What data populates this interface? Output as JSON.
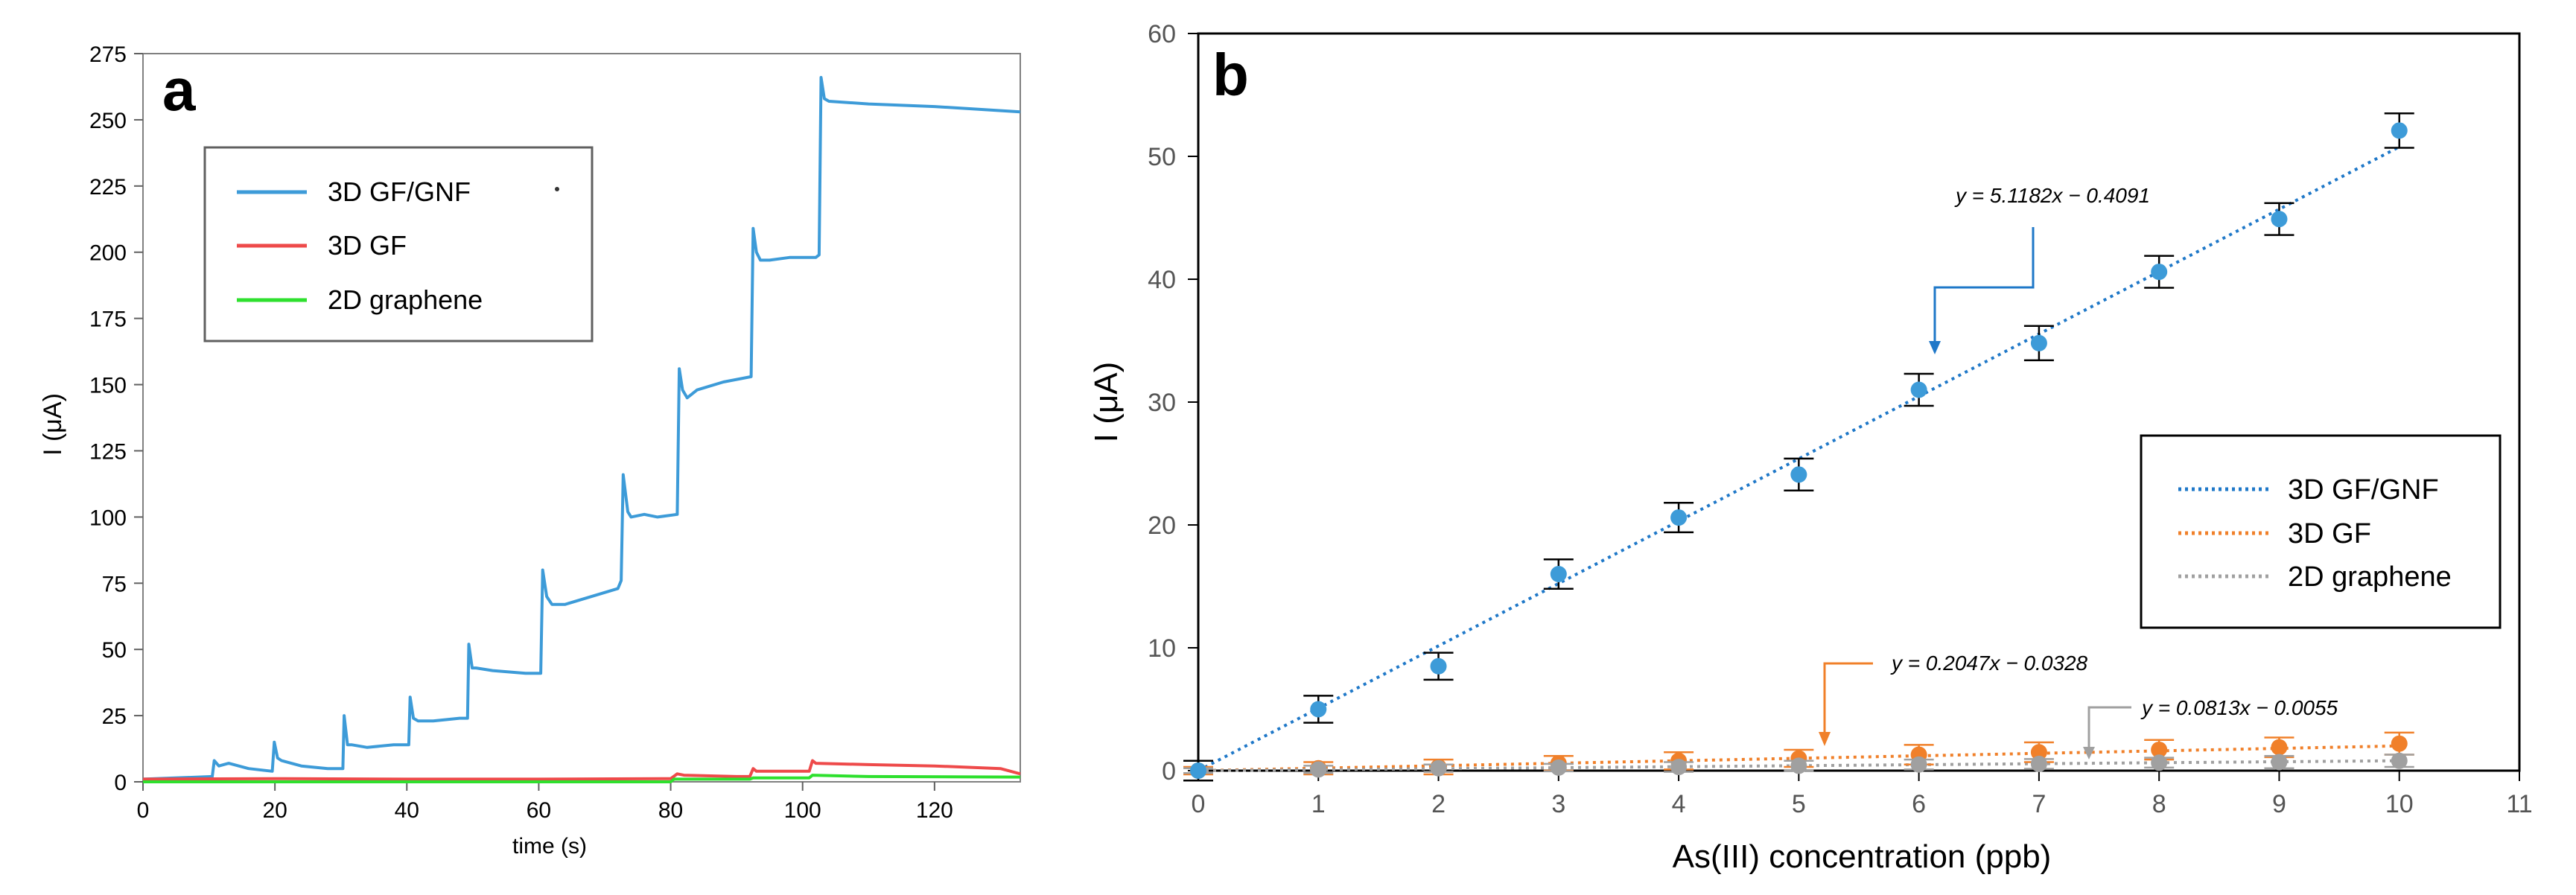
{
  "colors": {
    "blue": "#3d9bd8",
    "red": "#ee4a4a",
    "green": "#2ee02e",
    "orange": "#f0802a",
    "gray": "#a0a0a0",
    "axis": "#000000",
    "tick_text": "#555555"
  },
  "chart_data": [
    {
      "type": "line",
      "panel_label": "a",
      "xlabel": "time (s)",
      "ylabel": "I (μA)",
      "xlim": [
        0,
        133
      ],
      "ylim": [
        0,
        275
      ],
      "x_ticks": [
        0,
        20,
        40,
        60,
        80,
        100,
        120
      ],
      "y_ticks": [
        0,
        25,
        50,
        75,
        100,
        125,
        150,
        175,
        200,
        225,
        250,
        275
      ],
      "legend": [
        "3D GF/GNF",
        "3D GF",
        "2D graphene"
      ],
      "series": [
        {
          "name": "3D GF/GNF",
          "x": [
            0,
            10.5,
            10.8,
            11.5,
            13,
            16,
            19.6,
            19.9,
            20.4,
            21,
            24,
            28,
            30.3,
            30.5,
            31,
            31.6,
            34,
            38,
            40.3,
            40.5,
            41,
            41.7,
            44,
            48,
            49.2,
            49.4,
            49.9,
            50.5,
            53,
            58,
            60.3,
            60.6,
            61.2,
            62,
            64,
            68,
            72,
            72.5,
            72.8,
            73.5,
            74,
            76,
            78,
            81,
            81.3,
            81.8,
            82.5,
            84,
            88,
            92.2,
            92.5,
            93,
            93.6,
            95,
            98,
            102,
            102.5,
            102.8,
            103.3,
            104,
            110,
            120,
            133
          ],
          "y": [
            1,
            2,
            8,
            6,
            7,
            5,
            4,
            15,
            9,
            8,
            6,
            5,
            5,
            25,
            14,
            14,
            13,
            14,
            14,
            32,
            24,
            23,
            23,
            24,
            24,
            52,
            43,
            43,
            42,
            41,
            41,
            80,
            70,
            67,
            67,
            70,
            73,
            76,
            116,
            102,
            100,
            101,
            100,
            101,
            156,
            148,
            145,
            148,
            151,
            153,
            209,
            200,
            197,
            197,
            198,
            198,
            199,
            266,
            258,
            257,
            256,
            255,
            253
          ]
        },
        {
          "name": "3D GF",
          "x": [
            0,
            20,
            40,
            60,
            80,
            81,
            82,
            90,
            92,
            92.5,
            93,
            100,
            101,
            101.5,
            102,
            110,
            120,
            130,
            133
          ],
          "y": [
            1,
            1.2,
            1,
            1,
            1.2,
            3,
            2.5,
            2,
            2,
            5,
            4,
            4,
            4,
            8,
            7,
            6.5,
            6,
            5,
            3
          ]
        },
        {
          "name": "2D graphene",
          "x": [
            0,
            40,
            80,
            80.5,
            90,
            92,
            92.5,
            100,
            101,
            101.5,
            110,
            133
          ],
          "y": [
            0,
            0,
            0,
            1,
            1,
            1,
            1.5,
            1.5,
            1.5,
            2.5,
            2,
            1.8
          ]
        }
      ]
    },
    {
      "type": "scatter",
      "panel_label": "b",
      "xlabel": "As(III) concentration (ppb)",
      "ylabel": "I (μA)",
      "xlim": [
        0,
        11
      ],
      "ylim": [
        0,
        60
      ],
      "x_ticks": [
        0,
        1,
        2,
        3,
        4,
        5,
        6,
        7,
        8,
        9,
        10,
        11
      ],
      "y_ticks": [
        0,
        10,
        20,
        30,
        40,
        50,
        60
      ],
      "legend": [
        "3D GF/GNF",
        "3D GF",
        "2D graphene"
      ],
      "series": [
        {
          "name": "3D GF/GNF",
          "x": [
            0,
            1,
            2,
            3,
            4,
            5,
            6,
            7,
            8,
            9,
            10
          ],
          "y": [
            0,
            5.0,
            8.5,
            16.0,
            20.6,
            24.1,
            31.0,
            34.8,
            40.6,
            44.9,
            52.1
          ],
          "err": [
            0.8,
            1.1,
            1.1,
            1.2,
            1.2,
            1.3,
            1.3,
            1.4,
            1.3,
            1.3,
            1.4
          ],
          "fit": {
            "slope": 5.1182,
            "intercept": -0.4091,
            "label": "y = 5.1182x − 0.4091"
          }
        },
        {
          "name": "3D GF",
          "x": [
            0,
            1,
            2,
            3,
            4,
            5,
            6,
            7,
            8,
            9,
            10
          ],
          "y": [
            0,
            0.2,
            0.3,
            0.6,
            0.8,
            1.0,
            1.3,
            1.5,
            1.7,
            1.9,
            2.2
          ],
          "err": [
            0.3,
            0.5,
            0.6,
            0.6,
            0.7,
            0.7,
            0.8,
            0.8,
            0.8,
            0.8,
            0.9
          ],
          "fit": {
            "slope": 0.2047,
            "intercept": -0.0328,
            "label": "y = 0.2047x − 0.0328"
          }
        },
        {
          "name": "2D graphene",
          "x": [
            0,
            1,
            2,
            3,
            4,
            5,
            6,
            7,
            8,
            9,
            10
          ],
          "y": [
            0,
            0.1,
            0.2,
            0.25,
            0.3,
            0.4,
            0.5,
            0.55,
            0.65,
            0.7,
            0.8
          ],
          "err": [
            0.2,
            0.3,
            0.3,
            0.3,
            0.4,
            0.4,
            0.4,
            0.4,
            0.4,
            0.5,
            0.5
          ],
          "fit": {
            "slope": 0.0813,
            "intercept": -0.0055,
            "label": "y = 0.0813x − 0.0055"
          }
        }
      ]
    }
  ]
}
